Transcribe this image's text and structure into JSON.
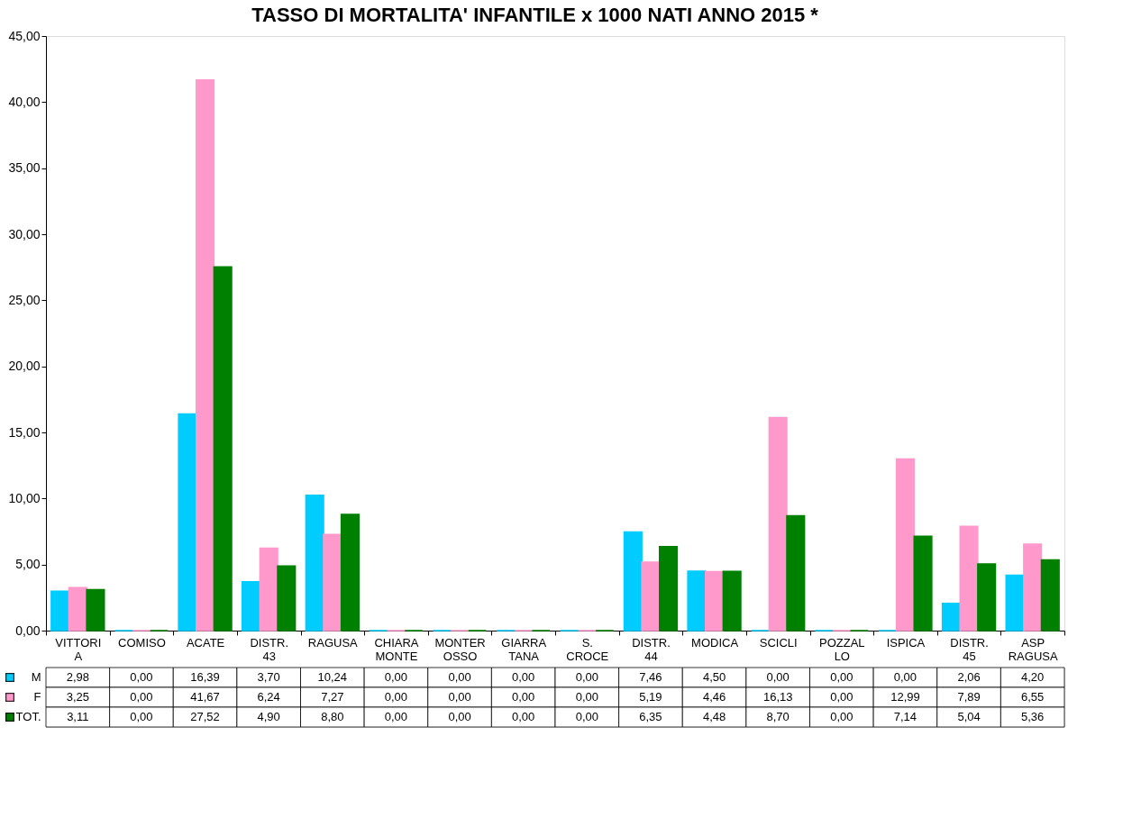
{
  "chart_data": {
    "type": "bar",
    "title": "TASSO DI MORTALITA' INFANTILE x 1000 NATI ANNO 2015 *",
    "categories": [
      "VITTORI A",
      "COMISO",
      "ACATE",
      "DISTR. 43",
      "RAGUSA",
      "CHIARA MONTE",
      "MONTER OSSO",
      "GIARRA TANA",
      "S. CROCE",
      "DISTR. 44",
      "MODICA",
      "SCICLI",
      "POZZAL LO",
      "ISPICA",
      "DISTR. 45",
      "ASP RAGUSA"
    ],
    "series": [
      {
        "name": "M",
        "color": "#00ccff",
        "values": [
          2.98,
          0,
          16.39,
          3.7,
          10.24,
          0,
          0,
          0,
          0,
          7.46,
          4.5,
          0,
          0,
          0,
          2.06,
          4.2
        ],
        "value_labels": [
          "2,98",
          "0,00",
          "16,39",
          "3,70",
          "10,24",
          "0,00",
          "0,00",
          "0,00",
          "0,00",
          "7,46",
          "4,50",
          "0,00",
          "0,00",
          "0,00",
          "2,06",
          "4,20"
        ]
      },
      {
        "name": "F",
        "color": "#ff99cc",
        "values": [
          3.25,
          0,
          41.67,
          6.24,
          7.27,
          0,
          0,
          0,
          0,
          5.19,
          4.46,
          16.13,
          0,
          12.99,
          7.89,
          6.55
        ],
        "value_labels": [
          "3,25",
          "0,00",
          "41,67",
          "6,24",
          "7,27",
          "0,00",
          "0,00",
          "0,00",
          "0,00",
          "5,19",
          "4,46",
          "16,13",
          "0,00",
          "12,99",
          "7,89",
          "6,55"
        ]
      },
      {
        "name": "TOT.",
        "color": "#008000",
        "values": [
          3.11,
          0,
          27.52,
          4.9,
          8.8,
          0,
          0,
          0,
          0,
          6.35,
          4.48,
          8.7,
          0,
          7.14,
          5.04,
          5.36
        ],
        "value_labels": [
          "3,11",
          "0,00",
          "27,52",
          "4,90",
          "8,80",
          "0,00",
          "0,00",
          "0,00",
          "0,00",
          "6,35",
          "4,48",
          "8,70",
          "0,00",
          "7,14",
          "5,04",
          "5,36"
        ]
      }
    ],
    "ylim": [
      0,
      45
    ],
    "yticks": [
      {
        "value": 0,
        "label": "0,00"
      },
      {
        "value": 5,
        "label": "5,00"
      },
      {
        "value": 10,
        "label": "10,00"
      },
      {
        "value": 15,
        "label": "15,00"
      },
      {
        "value": 20,
        "label": "20,00"
      },
      {
        "value": 25,
        "label": "25,00"
      },
      {
        "value": 30,
        "label": "30,00"
      },
      {
        "value": 35,
        "label": "35,00"
      },
      {
        "value": 40,
        "label": "40,00"
      },
      {
        "value": 45,
        "label": "45,00"
      }
    ],
    "grid": false,
    "legend": "bottom"
  }
}
